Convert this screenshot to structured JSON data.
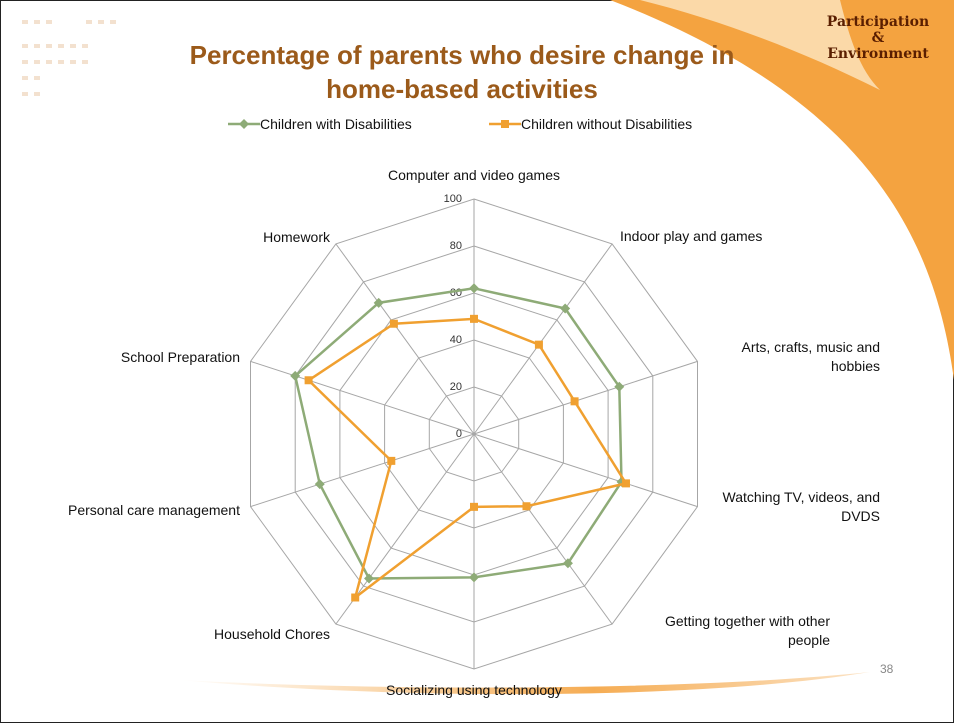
{
  "slide": {
    "tag": [
      "Participation",
      "&",
      "Environment"
    ],
    "page_number": "38"
  },
  "chart_data": {
    "type": "radar",
    "title": [
      "Percentage of parents who desire change in",
      "home-based activities"
    ],
    "categories": [
      "Computer and video games",
      "Indoor play and games",
      "Arts, crafts, music and hobbies",
      "Watching TV, videos, and DVDS",
      "Getting together with other people",
      "Socializing using technology",
      "Household Chores",
      "Personal care management",
      "School Preparation",
      "Homework"
    ],
    "series": [
      {
        "name": "Children with Disabilities",
        "color": "#8eab77",
        "marker": "diamond",
        "values": [
          62,
          66,
          65,
          66,
          68,
          61,
          76,
          69,
          80,
          69
        ]
      },
      {
        "name": "Children without Disabilities",
        "color": "#f0a030",
        "marker": "square",
        "values": [
          49,
          47,
          45,
          68,
          38,
          31,
          86,
          37,
          74,
          58
        ]
      }
    ],
    "rlim": [
      0,
      100
    ],
    "rticks": [
      0,
      20,
      40,
      60,
      80,
      100
    ],
    "legend": "top"
  }
}
